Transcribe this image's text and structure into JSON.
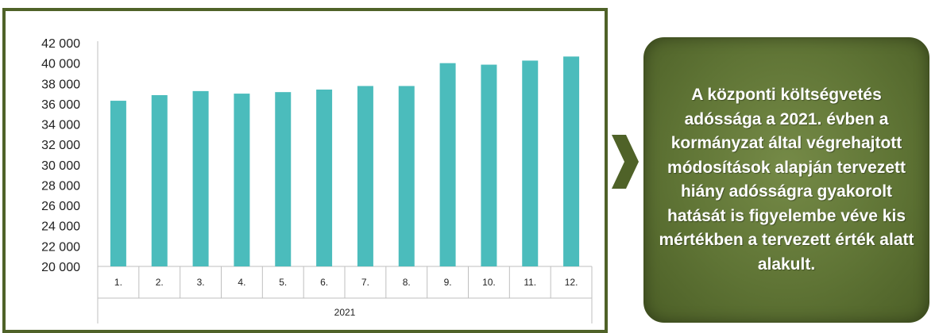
{
  "chart_data": {
    "type": "bar",
    "categories": [
      "1.",
      "2.",
      "3.",
      "4.",
      "5.",
      "6.",
      "7.",
      "8.",
      "9.",
      "10.",
      "11.",
      "12."
    ],
    "group_label": "2021",
    "values": [
      36300,
      36850,
      37250,
      37000,
      37150,
      37400,
      37750,
      37750,
      40000,
      39850,
      40250,
      40650
    ],
    "ylim": [
      20000,
      42000
    ],
    "yticks": [
      20000,
      22000,
      24000,
      26000,
      28000,
      30000,
      32000,
      34000,
      36000,
      38000,
      40000,
      42000
    ],
    "ytick_labels": [
      "20 000",
      "22 000",
      "24 000",
      "26 000",
      "28 000",
      "30 000",
      "32 000",
      "34 000",
      "36 000",
      "38 000",
      "40 000",
      "42 000"
    ],
    "bar_color": "#4bbcbc",
    "grid": false
  },
  "colors": {
    "frame": "#4f6228",
    "callout": "#5f7435",
    "arrow": "#4f6228"
  },
  "callout": {
    "text": "A központi költségvetés adóssága a 2021. évben a kormányzat által végrehajtott módosítások alapján tervezett hiány adósságra gyakorolt hatását is figyelembe véve kis mértékben a tervezett érték alatt alakult."
  },
  "arrow_icon": "chevron-right-icon"
}
